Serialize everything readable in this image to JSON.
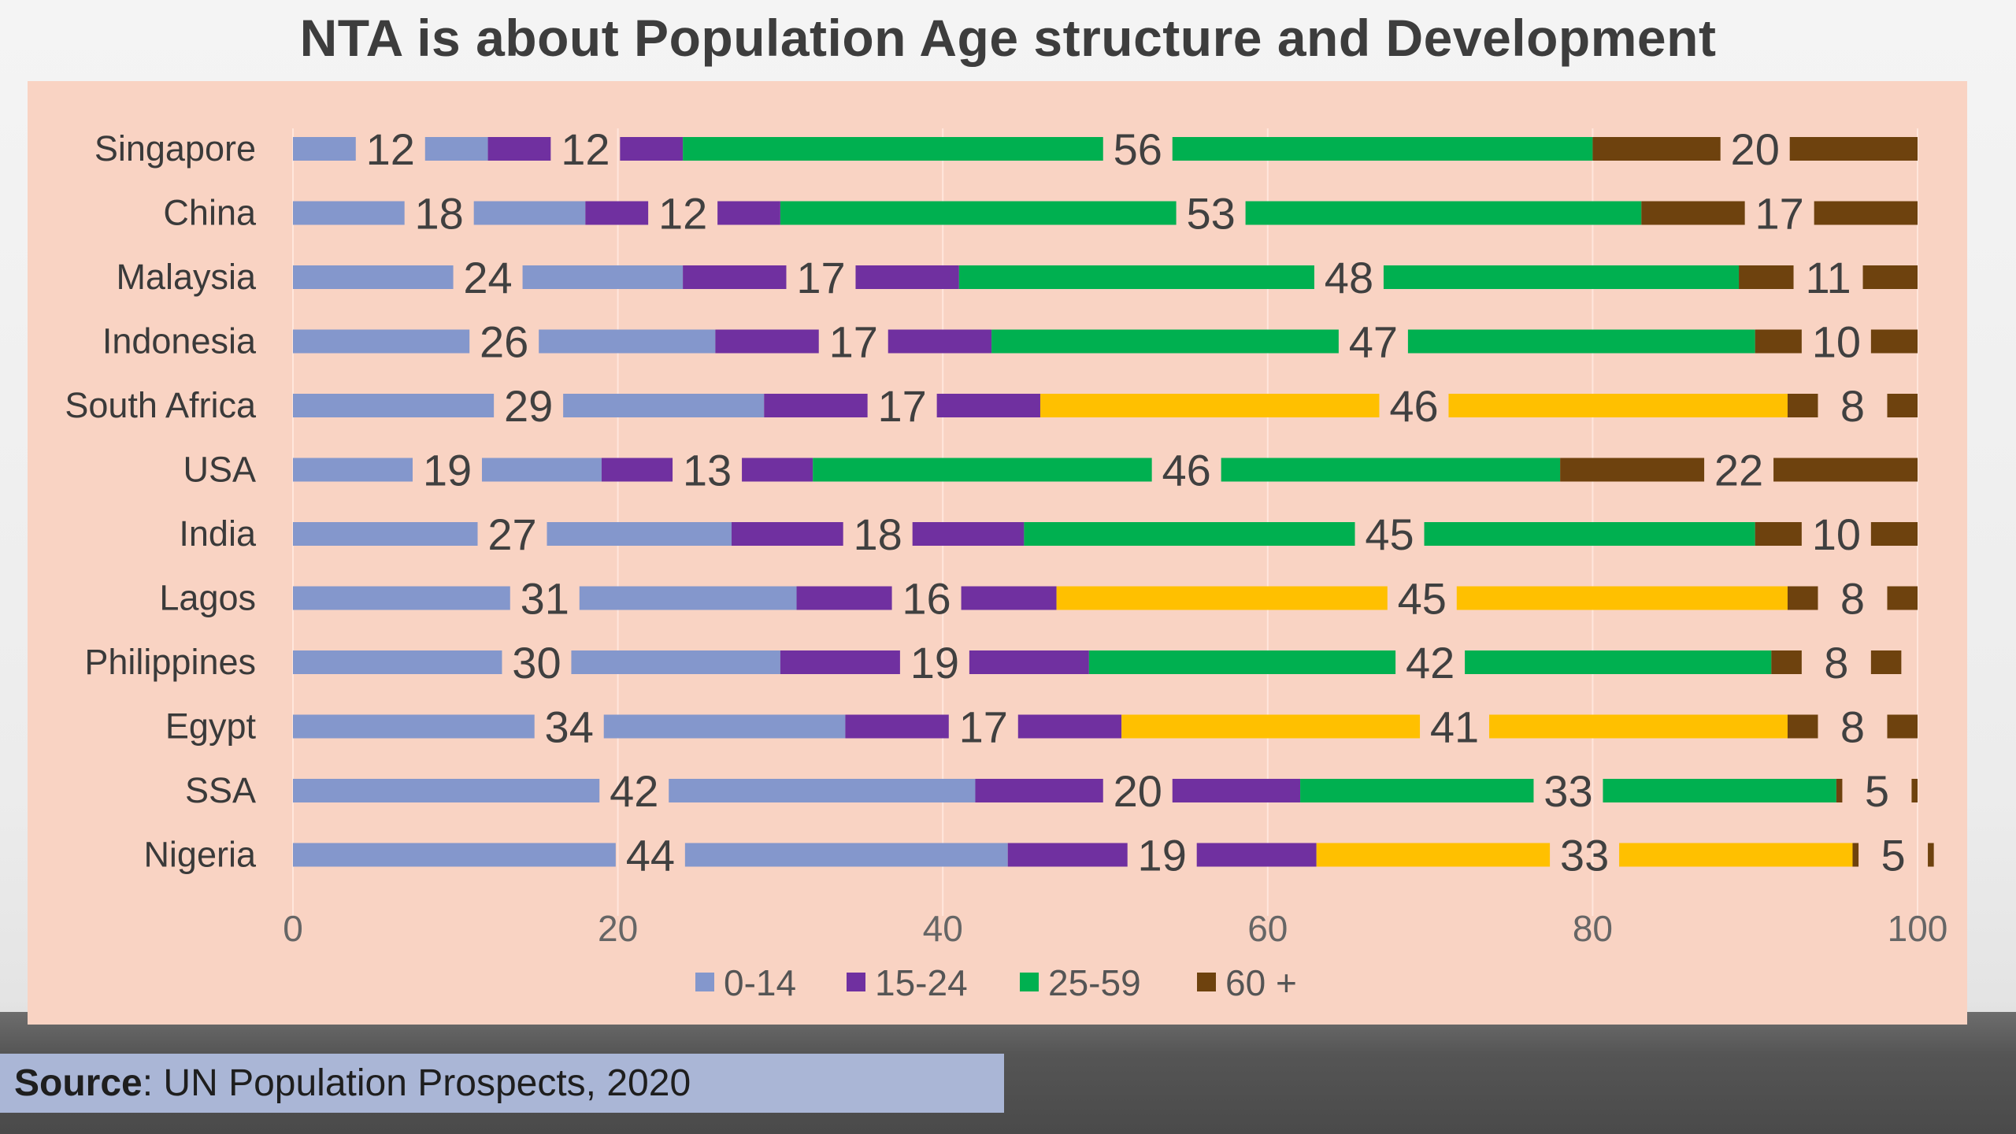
{
  "title": "NTA is about Population Age structure and Development",
  "source": {
    "label": "Source",
    "text": ": UN Population Prospects, 2020"
  },
  "colors": {
    "age_0_14": "#8497cc",
    "age_15_24": "#7030a0",
    "age_25_59_green": "#00b050",
    "age_25_59_yellow": "#ffc000",
    "age_60_plus": "#6e420e",
    "panel": "#f9d3c3"
  },
  "chart_data": {
    "type": "bar",
    "orientation": "horizontal",
    "stacked": true,
    "categories": [
      "Singapore",
      "China",
      "Malaysia",
      "Indonesia",
      "South Africa",
      "USA",
      "India",
      "Lagos",
      "Philippines",
      "Egypt",
      "SSA",
      "Nigeria"
    ],
    "series": [
      {
        "name": "0-14",
        "values": [
          12,
          18,
          24,
          26,
          29,
          19,
          27,
          31,
          30,
          34,
          42,
          44
        ]
      },
      {
        "name": "15-24",
        "values": [
          12,
          12,
          17,
          17,
          17,
          13,
          18,
          16,
          19,
          17,
          20,
          19
        ]
      },
      {
        "name": "25-59",
        "values": [
          56,
          53,
          48,
          47,
          46,
          46,
          45,
          45,
          42,
          41,
          33,
          33
        ]
      },
      {
        "name": "60 +",
        "values": [
          20,
          17,
          11,
          10,
          8,
          22,
          10,
          8,
          8,
          8,
          5,
          5
        ]
      }
    ],
    "segment_25_59_color": [
      "green",
      "green",
      "green",
      "green",
      "yellow",
      "green",
      "green",
      "yellow",
      "green",
      "yellow",
      "green",
      "yellow"
    ],
    "xlim": [
      0,
      100
    ],
    "xticks": [
      0,
      20,
      40,
      60,
      80,
      100
    ],
    "xlabel": "",
    "ylabel": "",
    "legend_position": "bottom",
    "grid": "vertical"
  }
}
